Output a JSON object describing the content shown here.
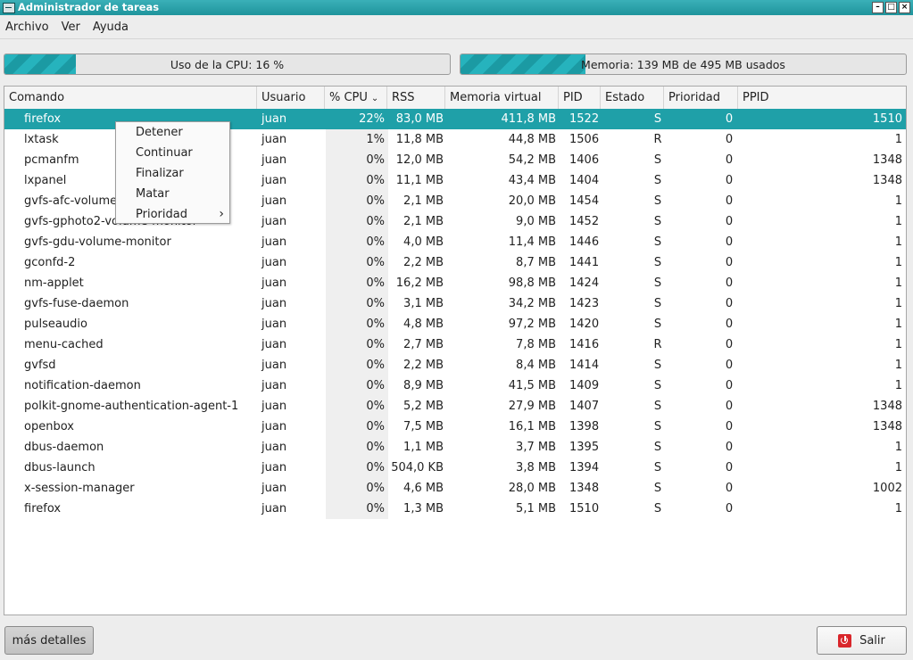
{
  "window": {
    "title": "Administrador de tareas",
    "buttons": {
      "minimize": "–",
      "maximize": "□",
      "close": "×"
    }
  },
  "menubar": {
    "items": [
      "Archivo",
      "Ver",
      "Ayuda"
    ]
  },
  "cpu": {
    "label": "Uso de la CPU: 16 %",
    "fraction": 0.16
  },
  "memory": {
    "label": "Memoria: 139 MB de 495 MB usados",
    "fraction": 0.281
  },
  "table": {
    "columns": [
      "Comando",
      "Usuario",
      "% CPU",
      "RSS",
      "Memoria virtual",
      "PID",
      "Estado",
      "Prioridad",
      "PPID"
    ],
    "sort_column": "% CPU",
    "sort_icon": "chevron-down-icon",
    "selected_row": 0,
    "rows": [
      {
        "cmd": "firefox",
        "user": "juan",
        "cpu": "22%",
        "rss": "83,0 MB",
        "vm": "411,8 MB",
        "pid": "1522",
        "state": "S",
        "prio": "0",
        "ppid": "1510"
      },
      {
        "cmd": "lxtask",
        "user": "juan",
        "cpu": "1%",
        "rss": "11,8 MB",
        "vm": "44,8 MB",
        "pid": "1506",
        "state": "R",
        "prio": "0",
        "ppid": "1"
      },
      {
        "cmd": "pcmanfm",
        "user": "juan",
        "cpu": "0%",
        "rss": "12,0 MB",
        "vm": "54,2 MB",
        "pid": "1406",
        "state": "S",
        "prio": "0",
        "ppid": "1348"
      },
      {
        "cmd": "lxpanel",
        "user": "juan",
        "cpu": "0%",
        "rss": "11,1 MB",
        "vm": "43,4 MB",
        "pid": "1404",
        "state": "S",
        "prio": "0",
        "ppid": "1348"
      },
      {
        "cmd": "gvfs-afc-volume-monitor",
        "user": "juan",
        "cpu": "0%",
        "rss": "2,1 MB",
        "vm": "20,0 MB",
        "pid": "1454",
        "state": "S",
        "prio": "0",
        "ppid": "1"
      },
      {
        "cmd": "gvfs-gphoto2-volume-monitor",
        "user": "juan",
        "cpu": "0%",
        "rss": "2,1 MB",
        "vm": "9,0 MB",
        "pid": "1452",
        "state": "S",
        "prio": "0",
        "ppid": "1"
      },
      {
        "cmd": "gvfs-gdu-volume-monitor",
        "user": "juan",
        "cpu": "0%",
        "rss": "4,0 MB",
        "vm": "11,4 MB",
        "pid": "1446",
        "state": "S",
        "prio": "0",
        "ppid": "1"
      },
      {
        "cmd": "gconfd-2",
        "user": "juan",
        "cpu": "0%",
        "rss": "2,2 MB",
        "vm": "8,7 MB",
        "pid": "1441",
        "state": "S",
        "prio": "0",
        "ppid": "1"
      },
      {
        "cmd": "nm-applet",
        "user": "juan",
        "cpu": "0%",
        "rss": "16,2 MB",
        "vm": "98,8 MB",
        "pid": "1424",
        "state": "S",
        "prio": "0",
        "ppid": "1"
      },
      {
        "cmd": "gvfs-fuse-daemon",
        "user": "juan",
        "cpu": "0%",
        "rss": "3,1 MB",
        "vm": "34,2 MB",
        "pid": "1423",
        "state": "S",
        "prio": "0",
        "ppid": "1"
      },
      {
        "cmd": "pulseaudio",
        "user": "juan",
        "cpu": "0%",
        "rss": "4,8 MB",
        "vm": "97,2 MB",
        "pid": "1420",
        "state": "S",
        "prio": "0",
        "ppid": "1"
      },
      {
        "cmd": "menu-cached",
        "user": "juan",
        "cpu": "0%",
        "rss": "2,7 MB",
        "vm": "7,8 MB",
        "pid": "1416",
        "state": "R",
        "prio": "0",
        "ppid": "1"
      },
      {
        "cmd": "gvfsd",
        "user": "juan",
        "cpu": "0%",
        "rss": "2,2 MB",
        "vm": "8,4 MB",
        "pid": "1414",
        "state": "S",
        "prio": "0",
        "ppid": "1"
      },
      {
        "cmd": "notification-daemon",
        "user": "juan",
        "cpu": "0%",
        "rss": "8,9 MB",
        "vm": "41,5 MB",
        "pid": "1409",
        "state": "S",
        "prio": "0",
        "ppid": "1"
      },
      {
        "cmd": "polkit-gnome-authentication-agent-1",
        "user": "juan",
        "cpu": "0%",
        "rss": "5,2 MB",
        "vm": "27,9 MB",
        "pid": "1407",
        "state": "S",
        "prio": "0",
        "ppid": "1348"
      },
      {
        "cmd": "openbox",
        "user": "juan",
        "cpu": "0%",
        "rss": "7,5 MB",
        "vm": "16,1 MB",
        "pid": "1398",
        "state": "S",
        "prio": "0",
        "ppid": "1348"
      },
      {
        "cmd": "dbus-daemon",
        "user": "juan",
        "cpu": "0%",
        "rss": "1,1 MB",
        "vm": "3,7 MB",
        "pid": "1395",
        "state": "S",
        "prio": "0",
        "ppid": "1"
      },
      {
        "cmd": "dbus-launch",
        "user": "juan",
        "cpu": "0%",
        "rss": "504,0 KB",
        "vm": "3,8 MB",
        "pid": "1394",
        "state": "S",
        "prio": "0",
        "ppid": "1"
      },
      {
        "cmd": "x-session-manager",
        "user": "juan",
        "cpu": "0%",
        "rss": "4,6 MB",
        "vm": "28,0 MB",
        "pid": "1348",
        "state": "S",
        "prio": "0",
        "ppid": "1002"
      },
      {
        "cmd": "firefox",
        "user": "juan",
        "cpu": "0%",
        "rss": "1,3 MB",
        "vm": "5,1 MB",
        "pid": "1510",
        "state": "S",
        "prio": "0",
        "ppid": "1"
      }
    ]
  },
  "context_menu": {
    "items": [
      "Detener",
      "Continuar",
      "Finalizar",
      "Matar",
      "Prioridad"
    ],
    "submenu_arrow": "›"
  },
  "buttons": {
    "more_details": "más detalles",
    "quit": "Salir",
    "quit_icon": "power-icon"
  },
  "colors": {
    "accent": "#1fa0a8",
    "quit_icon": "#d9262b"
  }
}
